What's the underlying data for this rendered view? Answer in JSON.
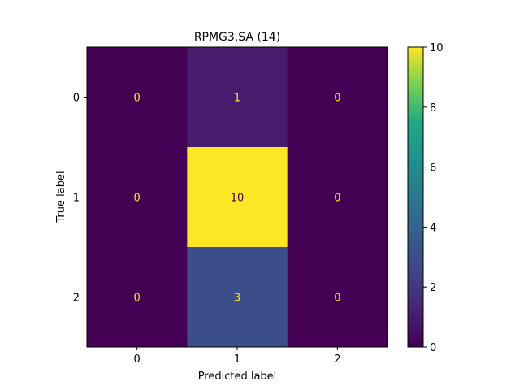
{
  "chart_data": {
    "type": "heatmap",
    "title": "RPMG3.SA (14)",
    "xlabel": "Predicted label",
    "ylabel": "True label",
    "x_categories": [
      "0",
      "1",
      "2"
    ],
    "y_categories": [
      "0",
      "1",
      "2"
    ],
    "values": [
      [
        0,
        1,
        0
      ],
      [
        0,
        10,
        0
      ],
      [
        0,
        3,
        0
      ]
    ],
    "colormap": "viridis",
    "color_range": [
      0,
      10
    ],
    "colorbar_ticks": [
      0,
      2,
      4,
      6,
      8,
      10
    ],
    "cell_text_colors": {
      "on_dark": "#fde725",
      "on_light": "#440154"
    },
    "grid": false
  }
}
